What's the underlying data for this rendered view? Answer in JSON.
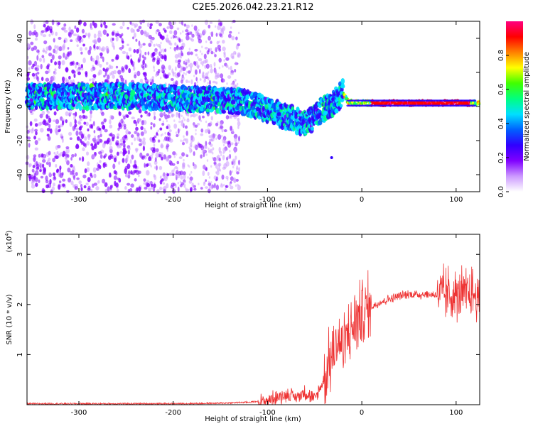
{
  "figure_title": "C2E5.2026.042.23.21.R12",
  "chart_data": [
    {
      "type": "heatmap",
      "title": "C2E5.2026.042.23.21.R12",
      "xlabel": "Height of straight line (km)",
      "ylabel": "Frequency (Hz)",
      "xlim": [
        -355,
        125
      ],
      "ylim": [
        -50,
        50
      ],
      "xticks": [
        -300,
        -200,
        -100,
        0,
        100
      ],
      "yticks": [
        -40,
        -20,
        0,
        20,
        40
      ],
      "colorbar": {
        "label": "Normalized spectral amplitude",
        "range": [
          0,
          1
        ],
        "ticks": [
          0.0,
          0.2,
          0.4,
          0.6,
          0.8
        ],
        "tick_labels": [
          "0.0",
          "0.2",
          "0.4",
          "0.6",
          "0.8"
        ],
        "colormap": [
          "#ffffff",
          "#cc99ff",
          "#8000ff",
          "#3000ff",
          "#0060ff",
          "#00e0ff",
          "#00ff80",
          "#40ff00",
          "#ffff00",
          "#ff8000",
          "#ff0000",
          "#ff0080"
        ]
      },
      "ridge": {
        "x": [
          -355,
          -320,
          -280,
          -240,
          -200,
          -160,
          -130,
          -110,
          -95,
          -80,
          -70,
          -60,
          -55,
          -50,
          -45,
          -40,
          -35,
          -30,
          -25,
          -20,
          -15,
          -10,
          0,
          20,
          50,
          100,
          125
        ],
        "y": [
          6,
          6,
          6,
          6,
          5,
          4,
          3,
          0,
          -3,
          -6,
          -8,
          -10,
          -9,
          -4,
          -3,
          -1,
          0,
          2,
          5,
          8,
          3,
          2,
          2,
          2,
          2,
          2,
          2
        ]
      },
      "isolated_point": {
        "x": -32,
        "y": -30
      }
    },
    {
      "type": "line",
      "xlabel": "Height of straight line (km)",
      "ylabel": "SNR (10 * v/v)",
      "y_multiplier_label": "(x10",
      "y_multiplier_exponent": "4",
      "y_multiplier_close": ")",
      "xlim": [
        -355,
        125
      ],
      "ylim": [
        0,
        3.4
      ],
      "xticks": [
        -300,
        -200,
        -100,
        0,
        100
      ],
      "yticks": [
        1,
        2,
        3
      ],
      "series_color": "#ee3333",
      "envelope": {
        "x": [
          -355,
          -300,
          -200,
          -150,
          -120,
          -100,
          -90,
          -80,
          -70,
          -60,
          -50,
          -40,
          -35,
          -30,
          -25,
          -20,
          -15,
          -10,
          -5,
          0,
          10,
          20,
          30,
          40,
          50,
          60,
          70,
          80,
          90,
          100,
          110,
          115,
          120,
          125
        ],
        "y": [
          0.02,
          0.02,
          0.02,
          0.03,
          0.05,
          0.08,
          0.15,
          0.2,
          0.15,
          0.25,
          0.1,
          0.5,
          0.8,
          1.05,
          1.3,
          1.1,
          1.4,
          1.55,
          1.7,
          1.85,
          1.95,
          2.05,
          2.12,
          2.17,
          2.2,
          2.2,
          2.2,
          2.19,
          2.2,
          2.18,
          2.2,
          2.2,
          2.2,
          2.0
        ]
      }
    }
  ]
}
